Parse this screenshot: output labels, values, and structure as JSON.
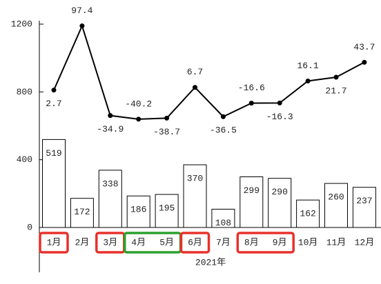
{
  "chart_data": {
    "type": "bar",
    "categories": [
      "1月",
      "2月",
      "3月",
      "4月",
      "5月",
      "6月",
      "7月",
      "8月",
      "9月",
      "10月",
      "11月",
      "12月"
    ],
    "xlabel": "2021年",
    "ylim": [
      0,
      1200
    ],
    "yticks": [
      0,
      400,
      800,
      1200
    ],
    "y2lim": [
      -200,
      100
    ],
    "series": [
      {
        "type": "bar",
        "color": "#000000",
        "values": [
          519,
          172,
          338,
          186,
          195,
          370,
          108,
          299,
          290,
          162,
          260,
          237
        ]
      },
      {
        "type": "line",
        "axis": "y2",
        "color": "#000000",
        "values": [
          2.7,
          97.4,
          -34.9,
          -40.2,
          -38.7,
          6.7,
          -36.5,
          -16.6,
          -16.3,
          16.1,
          21.7,
          43.7
        ]
      }
    ]
  }
}
